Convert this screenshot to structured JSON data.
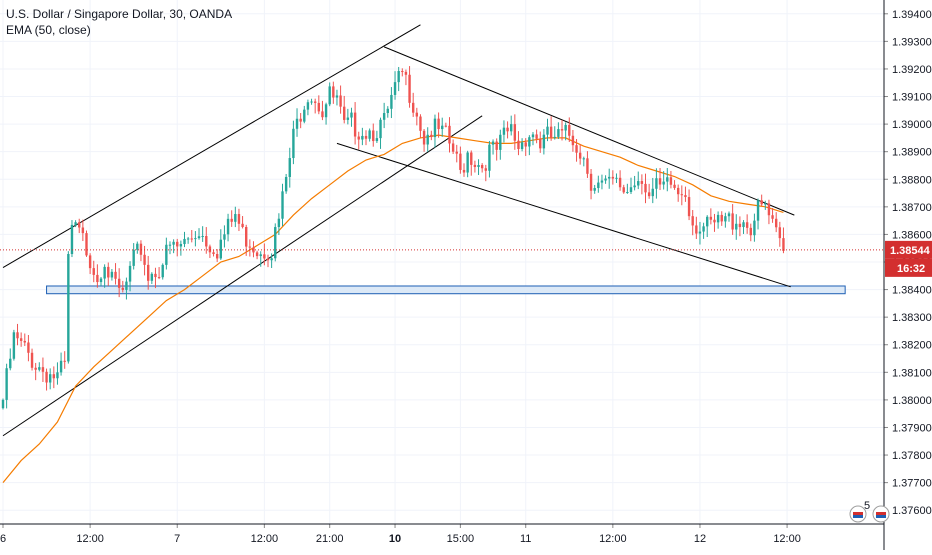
{
  "legend": {
    "symbol": "U.S. Dollar / Singapore Dollar, 30, OANDA",
    "indicator": "EMA (50, close)"
  },
  "last_price": {
    "value": "1.38544",
    "countdown": "16:32",
    "color": "#d32f2f"
  },
  "colors": {
    "up": "#26a69a",
    "down": "#ef5350",
    "ema": "#f57c00",
    "trendline": "#000000",
    "zone_fill": "#dce9f7",
    "zone_border": "#1e5fb4",
    "grid": "#f0f3fa"
  },
  "icons": [
    "flag-badge-icon",
    "flag-badge-icon-2"
  ],
  "badge_count": "5",
  "chart_data": {
    "type": "candlestick",
    "title": "U.S. Dollar / Singapore Dollar, 30, OANDA",
    "ylim": [
      1.3755,
      1.3945
    ],
    "y_ticks": [
      "1.39400",
      "1.39300",
      "1.39200",
      "1.39100",
      "1.39000",
      "1.38900",
      "1.38800",
      "1.38700",
      "1.38600",
      "1.38500",
      "1.38400",
      "1.38300",
      "1.38200",
      "1.38100",
      "1.38000",
      "1.37900",
      "1.37800",
      "1.37700",
      "1.37600"
    ],
    "x_ticks": [
      {
        "label": "6",
        "bold": false,
        "pos": 0
      },
      {
        "label": "12:00",
        "bold": false,
        "pos": 24
      },
      {
        "label": "7",
        "bold": false,
        "pos": 48
      },
      {
        "label": "12:00",
        "bold": false,
        "pos": 72
      },
      {
        "label": "21:00",
        "bold": false,
        "pos": 90
      },
      {
        "label": "10",
        "bold": true,
        "pos": 108
      },
      {
        "label": "15:00",
        "bold": false,
        "pos": 126
      },
      {
        "label": "11",
        "bold": false,
        "pos": 144
      },
      {
        "label": "12:00",
        "bold": false,
        "pos": 168
      },
      {
        "label": "12",
        "bold": false,
        "pos": 192
      },
      {
        "label": "12:00",
        "bold": false,
        "pos": 216
      }
    ],
    "anchors": [
      [
        0,
        1.38
      ],
      [
        3,
        1.3822
      ],
      [
        6,
        1.3818
      ],
      [
        9,
        1.3813
      ],
      [
        12,
        1.381
      ],
      [
        15,
        1.3808
      ],
      [
        17,
        1.3812
      ],
      [
        18,
        1.385
      ],
      [
        19,
        1.3862
      ],
      [
        21,
        1.386
      ],
      [
        23,
        1.3855
      ],
      [
        26,
        1.3845
      ],
      [
        28,
        1.3852
      ],
      [
        30,
        1.3842
      ],
      [
        33,
        1.3838
      ],
      [
        36,
        1.385
      ],
      [
        38,
        1.3855
      ],
      [
        40,
        1.3845
      ],
      [
        43,
        1.3848
      ],
      [
        46,
        1.3855
      ],
      [
        48,
        1.3855
      ],
      [
        51,
        1.3858
      ],
      [
        54,
        1.3862
      ],
      [
        56,
        1.3858
      ],
      [
        59,
        1.3855
      ],
      [
        62,
        1.3862
      ],
      [
        64,
        1.3867
      ],
      [
        66,
        1.386
      ],
      [
        68,
        1.3858
      ],
      [
        70,
        1.3855
      ],
      [
        72,
        1.3855
      ],
      [
        74,
        1.3855
      ],
      [
        76,
        1.3865
      ],
      [
        78,
        1.388
      ],
      [
        80,
        1.3895
      ],
      [
        82,
        1.3905
      ],
      [
        84,
        1.3912
      ],
      [
        86,
        1.391
      ],
      [
        88,
        1.3905
      ],
      [
        90,
        1.391
      ],
      [
        92,
        1.3908
      ],
      [
        94,
        1.3898
      ],
      [
        96,
        1.39
      ],
      [
        99,
        1.3898
      ],
      [
        102,
        1.3898
      ],
      [
        105,
        1.39
      ],
      [
        108,
        1.3912
      ],
      [
        110,
        1.3918
      ],
      [
        112,
        1.3912
      ],
      [
        114,
        1.3905
      ],
      [
        116,
        1.3895
      ],
      [
        118,
        1.3898
      ],
      [
        120,
        1.3897
      ],
      [
        122,
        1.3895
      ],
      [
        124,
        1.389
      ],
      [
        126,
        1.3882
      ],
      [
        128,
        1.389
      ],
      [
        130,
        1.3887
      ],
      [
        132,
        1.3885
      ],
      [
        134,
        1.389
      ],
      [
        136,
        1.389
      ],
      [
        138,
        1.3895
      ],
      [
        140,
        1.3898
      ],
      [
        142,
        1.3892
      ],
      [
        144,
        1.3896
      ],
      [
        146,
        1.3897
      ],
      [
        148,
        1.3893
      ],
      [
        150,
        1.3895
      ],
      [
        153,
        1.3895
      ],
      [
        156,
        1.3896
      ],
      [
        158,
        1.3893
      ],
      [
        160,
        1.3888
      ],
      [
        162,
        1.388
      ],
      [
        164,
        1.3878
      ],
      [
        166,
        1.3877
      ],
      [
        168,
        1.3878
      ],
      [
        170,
        1.3877
      ],
      [
        172,
        1.3876
      ],
      [
        174,
        1.388
      ],
      [
        176,
        1.3882
      ],
      [
        178,
        1.3874
      ],
      [
        180,
        1.3876
      ],
      [
        182,
        1.3876
      ],
      [
        184,
        1.3878
      ],
      [
        186,
        1.3875
      ],
      [
        188,
        1.3876
      ],
      [
        190,
        1.3865
      ],
      [
        192,
        1.3863
      ],
      [
        194,
        1.3862
      ],
      [
        196,
        1.3863
      ],
      [
        198,
        1.3864
      ],
      [
        200,
        1.3865
      ],
      [
        202,
        1.3866
      ],
      [
        204,
        1.3865
      ],
      [
        206,
        1.3863
      ],
      [
        208,
        1.3868
      ],
      [
        210,
        1.387
      ],
      [
        212,
        1.3862
      ],
      [
        214,
        1.3856
      ],
      [
        215,
        1.3853
      ]
    ],
    "ema_series": [
      [
        0,
        1.377
      ],
      [
        5,
        1.3778
      ],
      [
        10,
        1.3784
      ],
      [
        15,
        1.3792
      ],
      [
        20,
        1.3805
      ],
      [
        25,
        1.3812
      ],
      [
        30,
        1.3818
      ],
      [
        35,
        1.3824
      ],
      [
        40,
        1.383
      ],
      [
        45,
        1.3836
      ],
      [
        50,
        1.384
      ],
      [
        55,
        1.3845
      ],
      [
        60,
        1.385
      ],
      [
        65,
        1.3852
      ],
      [
        70,
        1.3856
      ],
      [
        75,
        1.386
      ],
      [
        80,
        1.3867
      ],
      [
        85,
        1.3873
      ],
      [
        90,
        1.3878
      ],
      [
        95,
        1.3883
      ],
      [
        100,
        1.3887
      ],
      [
        105,
        1.3889
      ],
      [
        110,
        1.3893
      ],
      [
        115,
        1.3895
      ],
      [
        120,
        1.3896
      ],
      [
        125,
        1.3895
      ],
      [
        130,
        1.3894
      ],
      [
        135,
        1.3893
      ],
      [
        140,
        1.3893
      ],
      [
        145,
        1.3894
      ],
      [
        150,
        1.3895
      ],
      [
        155,
        1.3895
      ],
      [
        160,
        1.3892
      ],
      [
        165,
        1.389
      ],
      [
        170,
        1.3888
      ],
      [
        175,
        1.3885
      ],
      [
        180,
        1.3883
      ],
      [
        185,
        1.3881
      ],
      [
        190,
        1.3878
      ],
      [
        195,
        1.3874
      ],
      [
        200,
        1.3872
      ],
      [
        205,
        1.3871
      ],
      [
        210,
        1.387
      ],
      [
        215,
        1.3868
      ]
    ],
    "trendlines": [
      {
        "name": "ascending-channel-upper",
        "p1": [
          0,
          1.3848
        ],
        "p2": [
          115,
          1.3936
        ]
      },
      {
        "name": "ascending-channel-lower",
        "p1": [
          0,
          1.3787
        ],
        "p2": [
          132,
          1.3903
        ]
      },
      {
        "name": "descending-channel-upper",
        "p1": [
          105,
          1.3928
        ],
        "p2": [
          218,
          1.3867
        ]
      },
      {
        "name": "descending-channel-lower",
        "p1": [
          92,
          1.3893
        ],
        "p2": [
          217,
          1.3841
        ]
      }
    ],
    "support_zone": {
      "x_from": 12,
      "x_to": 232,
      "y_low": 1.38385,
      "y_high": 1.38413
    },
    "last_price_line": 1.38544
  }
}
